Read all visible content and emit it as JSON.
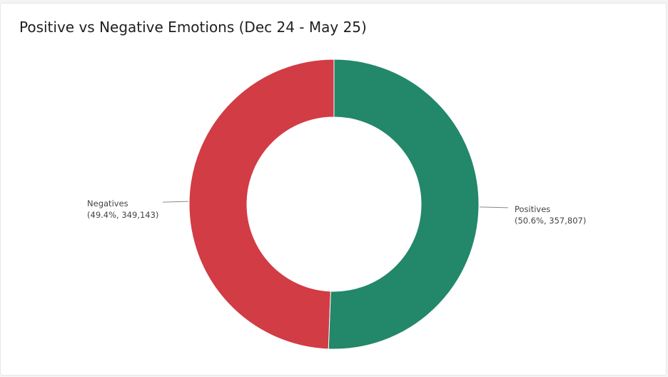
{
  "chart_data": {
    "type": "donut",
    "title": "Positive vs Negative Emotions (Dec 24 - May 25)",
    "categories": [
      "Positives",
      "Negatives"
    ],
    "values": [
      357807,
      349143
    ],
    "value_labels": [
      "(50.6%, 357,807)",
      "(49.4%, 349,143)"
    ],
    "colors": [
      "#238769",
      "#d13c45"
    ]
  }
}
